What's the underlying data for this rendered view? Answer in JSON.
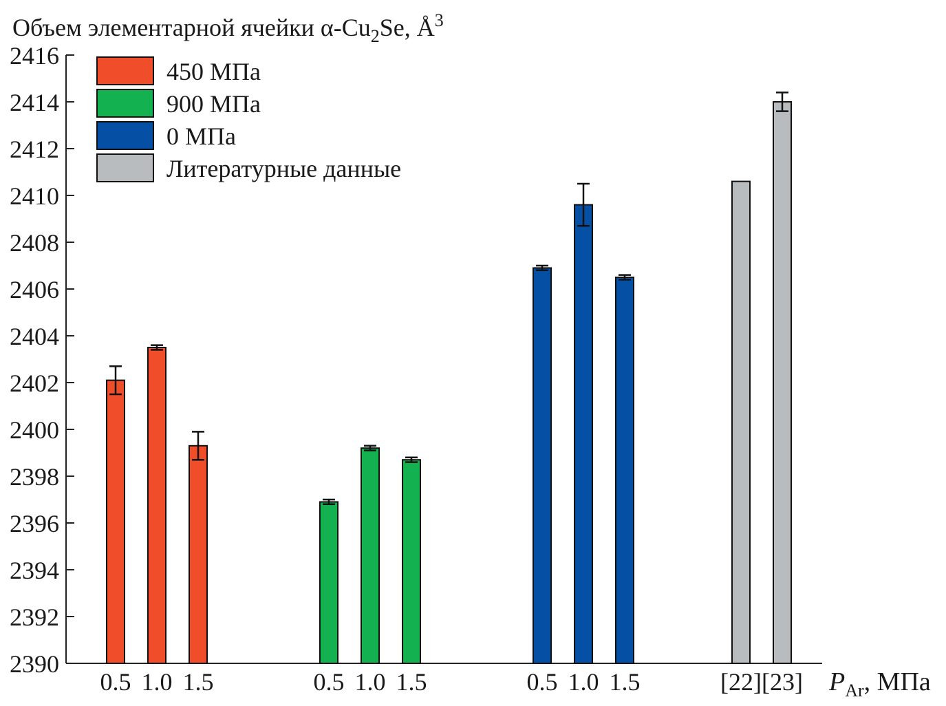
{
  "chart_data": {
    "type": "bar",
    "ylabel_parts": [
      "Объем элементарной ячейки α-Cu",
      "2",
      "Se, Å",
      "3"
    ],
    "xlabel_parts": [
      "P",
      "Ar",
      ", МПа"
    ],
    "ylim": [
      2390,
      2416
    ],
    "yticks": [
      2390,
      2392,
      2394,
      2396,
      2398,
      2400,
      2402,
      2404,
      2406,
      2408,
      2410,
      2412,
      2414,
      2416
    ],
    "grid": false,
    "legend_position": "top-left",
    "groups": [
      {
        "name": "450 МПа",
        "color": "#f04e2a",
        "categories": [
          "0.5",
          "1.0",
          "1.5"
        ],
        "values": [
          2402.1,
          2403.5,
          2399.3
        ],
        "errors": [
          0.6,
          0.1,
          0.6
        ]
      },
      {
        "name": "900 МПа",
        "color": "#13b14f",
        "categories": [
          "0.5",
          "1.0",
          "1.5"
        ],
        "values": [
          2396.9,
          2399.2,
          2398.7
        ],
        "errors": [
          0.1,
          0.1,
          0.1
        ]
      },
      {
        "name": "0 МПа",
        "color": "#0550a4",
        "categories": [
          "0.5",
          "1.0",
          "1.5"
        ],
        "values": [
          2406.9,
          2409.6,
          2406.5
        ],
        "errors": [
          0.1,
          0.9,
          0.1
        ]
      },
      {
        "name": "Литературные данные",
        "color": "#b9bcbf",
        "categories": [
          "[22]",
          "[23]"
        ],
        "values": [
          2410.6,
          2414.0
        ],
        "errors": [
          0,
          0.4
        ]
      }
    ]
  }
}
